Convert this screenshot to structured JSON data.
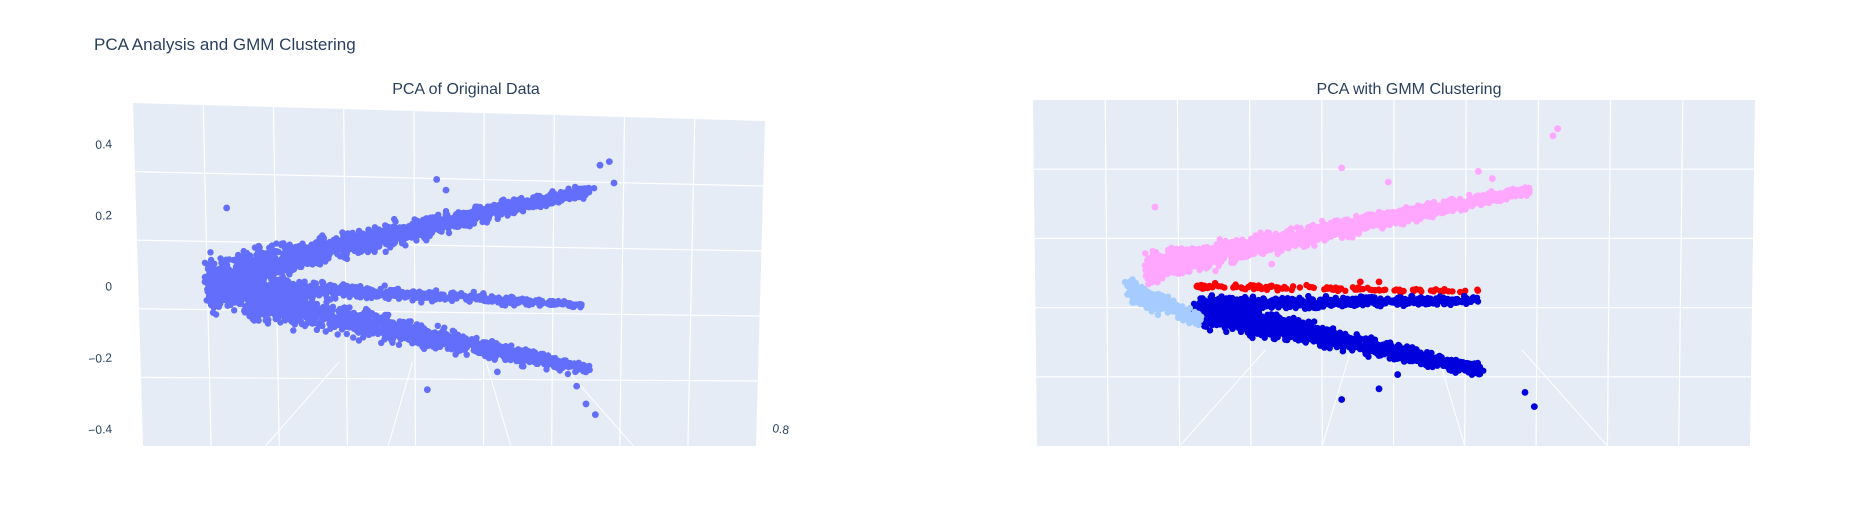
{
  "title": "PCA Analysis and GMM Clustering",
  "chart_data": [
    {
      "type": "scatter",
      "title": "PCA of Original Data",
      "z_ticks": [
        "0.4",
        "0.2",
        "0",
        "−0.2",
        "−0.4"
      ],
      "z_tick_values": [
        0.4,
        0.2,
        0,
        -0.2,
        -0.4
      ],
      "x_ticks": [
        "0.8"
      ],
      "x_tick_values": [
        0.8
      ],
      "zlim": [
        -0.42,
        0.45
      ],
      "xlim": [
        -0.35,
        0.85
      ],
      "grid": true,
      "series": [
        {
          "color": "#636efa",
          "points": [
            [
              -0.25,
              0.22
            ],
            [
              0.55,
              0.34
            ],
            [
              0.57,
              0.35
            ],
            [
              0.58,
              0.29
            ],
            [
              0.5,
              -0.28
            ],
            [
              0.52,
              -0.33
            ],
            [
              0.54,
              -0.36
            ],
            [
              0.18,
              -0.29
            ],
            [
              0.2,
              0.3
            ],
            [
              0.22,
              0.27
            ],
            [
              0.34,
              0.24
            ],
            [
              0.3,
              -0.02
            ],
            [
              0.36,
              -0.03
            ],
            [
              0.33,
              -0.24
            ]
          ]
        }
      ]
    },
    {
      "type": "scatter",
      "title": "PCA with GMM Clustering",
      "grid": true,
      "series": [
        {
          "color": "#ffa6ff",
          "points": [
            [
              0.62,
              0.42
            ],
            [
              0.61,
              0.4
            ],
            [
              0.2,
              0.31
            ],
            [
              0.3,
              0.27
            ],
            [
              0.45,
              0.3
            ],
            [
              0.48,
              0.28
            ],
            [
              -0.2,
              0.2
            ],
            [
              0.05,
              0.04
            ]
          ]
        },
        {
          "color": "#ff0000",
          "points": [
            [
              0.28,
              -0.01
            ],
            [
              0.24,
              -0.01
            ]
          ]
        },
        {
          "color": "#0000dd",
          "points": [
            [
              0.35,
              -0.05
            ],
            [
              0.42,
              -0.05
            ],
            [
              0.55,
              -0.32
            ],
            [
              0.57,
              -0.36
            ],
            [
              0.2,
              -0.34
            ],
            [
              0.28,
              -0.31
            ],
            [
              0.32,
              -0.27
            ]
          ]
        },
        {
          "color": "#a6cbff",
          "points": [
            [
              -0.2,
              -0.05
            ],
            [
              -0.17,
              -0.09
            ],
            [
              -0.15,
              -0.11
            ]
          ]
        }
      ]
    }
  ]
}
